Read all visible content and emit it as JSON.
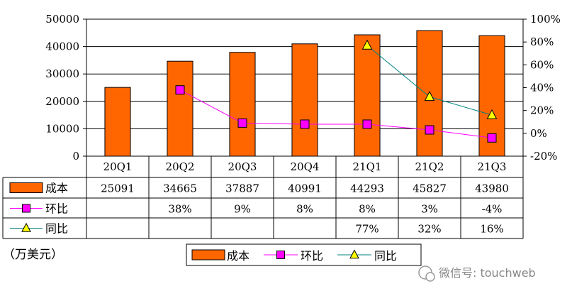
{
  "chart_data": {
    "type": "bar",
    "categories": [
      "20Q1",
      "20Q2",
      "20Q3",
      "20Q4",
      "21Q1",
      "21Q2",
      "21Q3"
    ],
    "series": [
      {
        "name": "成本",
        "type": "bar",
        "axis": "left",
        "values": [
          25091,
          34665,
          37887,
          40991,
          44293,
          45827,
          43980
        ],
        "labels": [
          "25091",
          "34665",
          "37887",
          "40991",
          "44293",
          "45827",
          "43980"
        ],
        "color": "#ff6600"
      },
      {
        "name": "环比",
        "type": "line",
        "axis": "right",
        "marker": "square",
        "values": [
          null,
          38,
          9,
          8,
          8,
          3,
          -4
        ],
        "labels": [
          "",
          "38%",
          "9%",
          "8%",
          "8%",
          "3%",
          "-4%"
        ],
        "color": "#ff00ff"
      },
      {
        "name": "同比",
        "type": "line",
        "axis": "right",
        "marker": "triangle",
        "values": [
          null,
          null,
          null,
          null,
          77,
          32,
          16
        ],
        "labels": [
          "",
          "",
          "",
          "",
          "77%",
          "32%",
          "16%"
        ],
        "color": "#ffff00",
        "line_color": "#008080"
      }
    ],
    "y_left": {
      "ticks": [
        "50000",
        "40000",
        "30000",
        "20000",
        "10000",
        "0"
      ],
      "ylim": [
        0,
        50000
      ]
    },
    "y_right": {
      "ticks": [
        "100%",
        "80%",
        "60%",
        "40%",
        "20%",
        "0%",
        "-20%"
      ],
      "ylim": [
        -20,
        100
      ]
    },
    "unit_label": "（万美元）",
    "grid": true,
    "legend": "bottom"
  },
  "watermark": {
    "text": "微信号: touchweb"
  }
}
